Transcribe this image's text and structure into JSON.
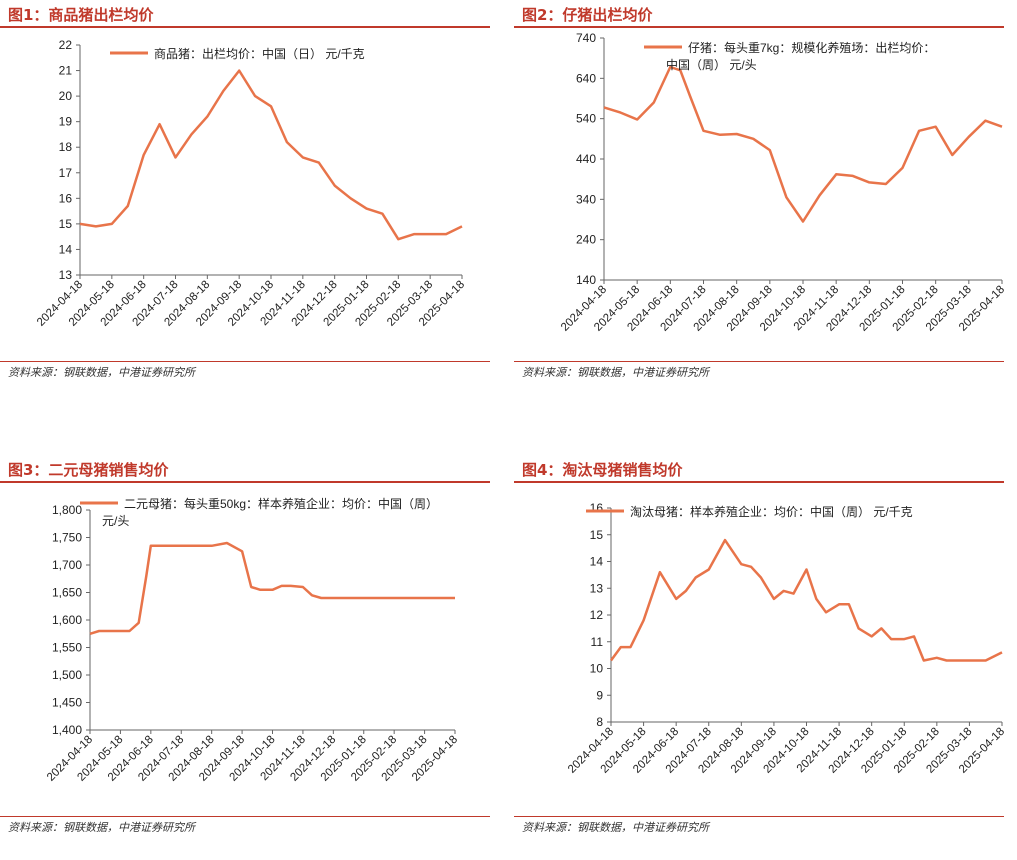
{
  "accent": "#c0392b",
  "line_color": "#e8744a",
  "source_text": "资料来源：钢联数据，中港证券研究所",
  "chart_data": [
    {
      "id": "c1",
      "figure_title": "图1：商品猪出栏均价",
      "type": "line",
      "legend": "商品猪：出栏均价：中国（日）  元/千克",
      "yticks": [
        "22",
        "21",
        "20",
        "19",
        "18",
        "17",
        "16",
        "15",
        "14",
        "13"
      ],
      "ylim": [
        13,
        22
      ],
      "xticks": [
        "2024-04-18",
        "2024-05-18",
        "2024-06-18",
        "2024-07-18",
        "2024-08-18",
        "2024-09-18",
        "2024-10-18",
        "2024-11-18",
        "2024-12-18",
        "2025-01-18",
        "2025-02-18",
        "2025-03-18",
        "2025-04-18"
      ],
      "x": [
        0,
        0.5,
        1,
        1.5,
        2,
        2.5,
        3,
        3.5,
        4,
        4.5,
        5,
        5.5,
        6,
        6.5,
        7,
        7.5,
        8,
        8.5,
        9,
        9.5,
        10,
        10.5,
        11,
        11.5,
        12
      ],
      "values": [
        15.0,
        14.9,
        15.0,
        15.7,
        17.7,
        18.9,
        17.6,
        18.5,
        19.2,
        20.2,
        21.0,
        20.0,
        19.6,
        18.2,
        17.6,
        17.4,
        16.5,
        16.0,
        15.6,
        15.4,
        14.4,
        14.6,
        14.6,
        14.6,
        14.9
      ]
    },
    {
      "id": "c2",
      "figure_title": "图2：仔猪出栏均价",
      "type": "line",
      "legend": [
        "仔猪：每头重7kg：规模化养殖场：出栏均价：",
        "中国（周）  元/头"
      ],
      "yticks": [
        "740",
        "640",
        "540",
        "440",
        "340",
        "240",
        "140"
      ],
      "ylim": [
        140,
        740
      ],
      "xticks": [
        "2024-04-18",
        "2024-05-18",
        "2024-06-18",
        "2024-07-18",
        "2024-08-18",
        "2024-09-18",
        "2024-10-18",
        "2024-11-18",
        "2024-12-18",
        "2025-01-18",
        "2025-02-18",
        "2025-03-18",
        "2025-04-18"
      ],
      "x": [
        0,
        0.5,
        1,
        1.5,
        2,
        2.3,
        2.6,
        3,
        3.5,
        4,
        4.5,
        5,
        5.5,
        6,
        6.5,
        7,
        7.5,
        8,
        8.5,
        9,
        9.5,
        10,
        10.5,
        11,
        11.5,
        12
      ],
      "values": [
        568,
        555,
        538,
        580,
        668,
        660,
        595,
        510,
        500,
        502,
        490,
        462,
        345,
        285,
        350,
        402,
        398,
        382,
        378,
        418,
        510,
        520,
        450,
        495,
        535,
        520
      ]
    },
    {
      "id": "c3",
      "figure_title": "图3：二元母猪销售均价",
      "type": "line",
      "legend": [
        "二元母猪：每头重50kg：样本养殖企业：均价：中国（周）",
        "元/头"
      ],
      "yticks": [
        "1,800",
        "1,750",
        "1,700",
        "1,650",
        "1,600",
        "1,550",
        "1,500",
        "1,450",
        "1,400"
      ],
      "ylim": [
        1400,
        1800
      ],
      "xticks": [
        "2024-04-18",
        "2024-05-18",
        "2024-06-18",
        "2024-07-18",
        "2024-08-18",
        "2024-09-18",
        "2024-10-18",
        "2024-11-18",
        "2024-12-18",
        "2025-01-18",
        "2025-02-18",
        "2025-03-18",
        "2025-04-18"
      ],
      "x": [
        0,
        0.3,
        1,
        1.3,
        1.6,
        1.85,
        2,
        3,
        4,
        4.5,
        5,
        5.3,
        5.6,
        6,
        6.3,
        6.6,
        7,
        7.3,
        7.6,
        8,
        9,
        10,
        11,
        12
      ],
      "values": [
        1575,
        1580,
        1580,
        1580,
        1595,
        1680,
        1735,
        1735,
        1735,
        1740,
        1725,
        1660,
        1655,
        1655,
        1662,
        1662,
        1660,
        1645,
        1640,
        1640,
        1640,
        1640,
        1640,
        1640
      ]
    },
    {
      "id": "c4",
      "figure_title": "图4：淘汰母猪销售均价",
      "type": "line",
      "legend": "淘汰母猪：样本养殖企业：均价：中国（周）  元/千克",
      "yticks": [
        "16",
        "15",
        "14",
        "13",
        "12",
        "11",
        "10",
        "9",
        "8"
      ],
      "ylim": [
        8,
        16
      ],
      "xticks": [
        "2024-04-18",
        "2024-05-18",
        "2024-06-18",
        "2024-07-18",
        "2024-08-18",
        "2024-09-18",
        "2024-10-18",
        "2024-11-18",
        "2024-12-18",
        "2025-01-18",
        "2025-02-18",
        "2025-03-18",
        "2025-04-18"
      ],
      "x": [
        0,
        0.3,
        0.6,
        1,
        1.5,
        2,
        2.3,
        2.6,
        3,
        3.5,
        4,
        4.3,
        4.6,
        5,
        5.3,
        5.6,
        6,
        6.3,
        6.6,
        7,
        7.3,
        7.6,
        8,
        8.3,
        8.6,
        9,
        9.3,
        9.6,
        10,
        10.3,
        10.6,
        11,
        11.5,
        12
      ],
      "values": [
        10.3,
        10.8,
        10.8,
        11.8,
        13.6,
        12.6,
        12.9,
        13.4,
        13.7,
        14.8,
        13.9,
        13.8,
        13.4,
        12.6,
        12.9,
        12.8,
        13.7,
        12.6,
        12.1,
        12.4,
        12.4,
        11.5,
        11.2,
        11.5,
        11.1,
        11.1,
        11.2,
        10.3,
        10.4,
        10.3,
        10.3,
        10.3,
        10.3,
        10.6
      ]
    }
  ]
}
